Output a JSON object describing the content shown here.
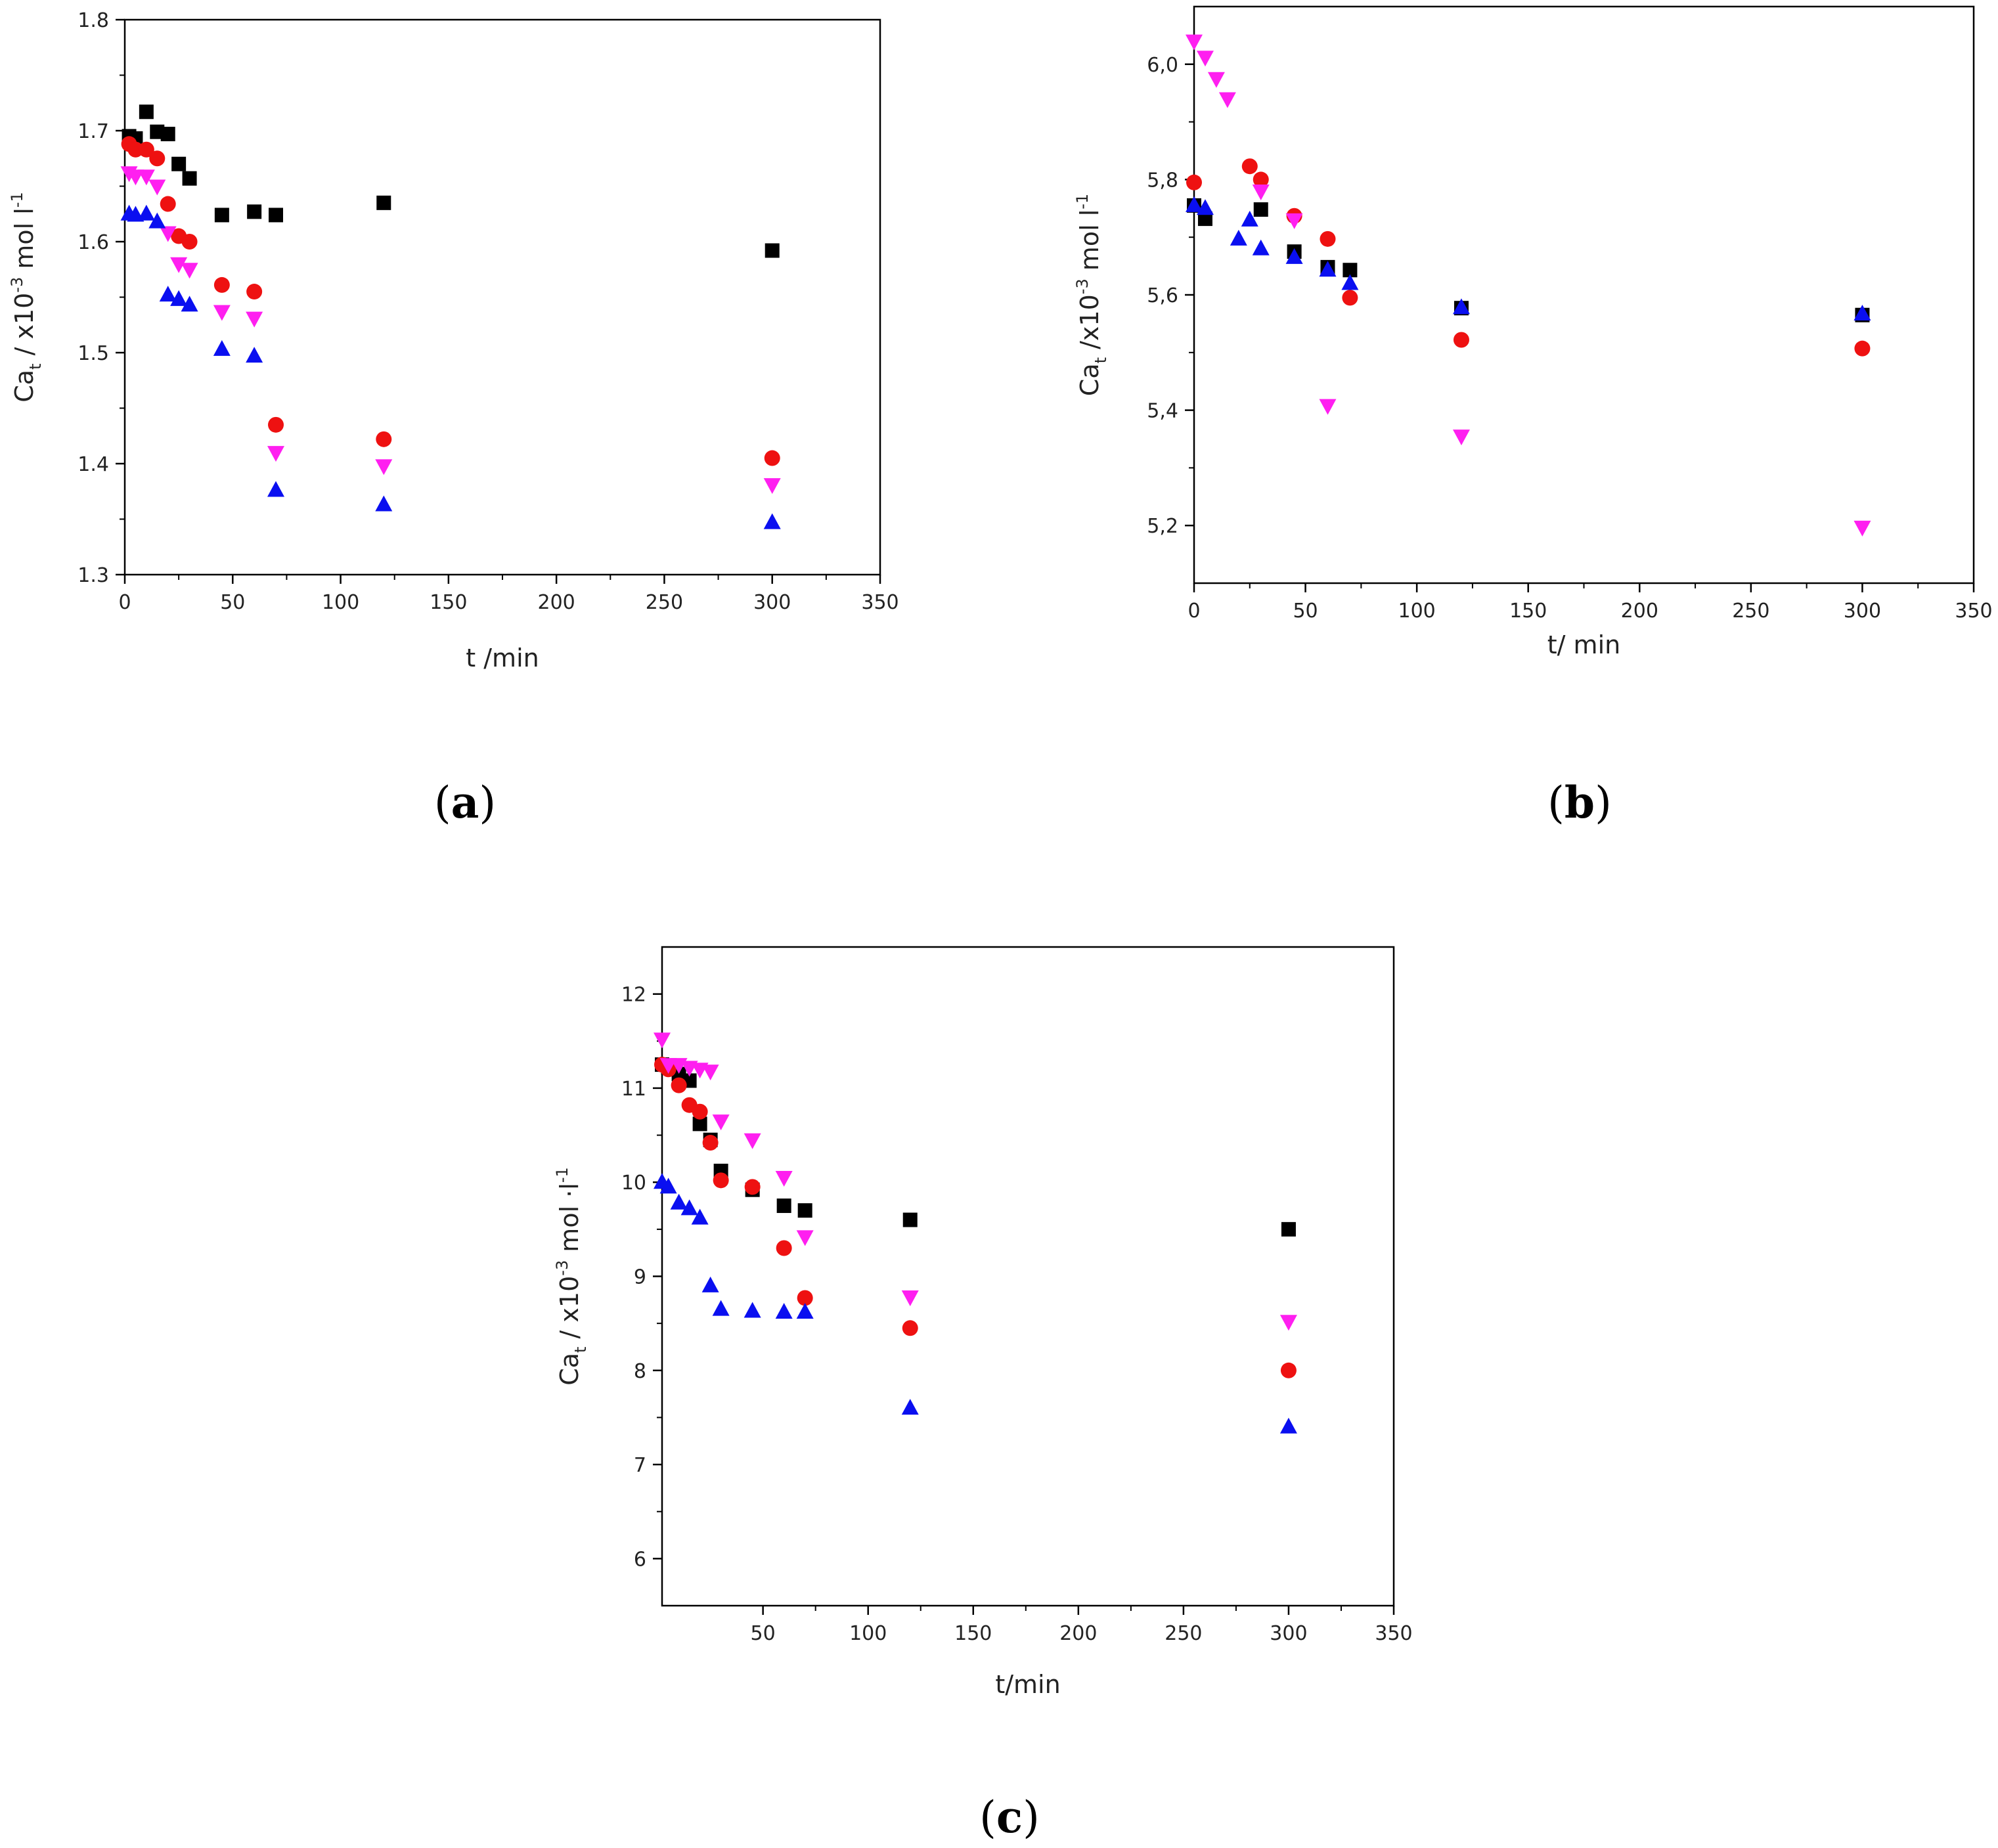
{
  "figure": {
    "marker_legend": [
      {
        "shape": "square",
        "color": "#000000"
      },
      {
        "shape": "circle",
        "color": "#ee1111"
      },
      {
        "shape": "triangle-down",
        "color": "#ff1ff0"
      },
      {
        "shape": "triangle-up",
        "color": "#0a0ff0"
      }
    ]
  },
  "chart_data": [
    {
      "id": "a",
      "type": "scatter",
      "panel_label": {
        "open": "(",
        "letter": "a",
        "close": ")"
      },
      "xlabel": "t /min",
      "ylabel": {
        "base": "Ca",
        "sub": "t",
        "text1": " / x10",
        "sup": "-3",
        "text2": " mol l",
        "sup2": "-1"
      },
      "xlim": [
        0,
        350
      ],
      "ylim": [
        1.3,
        1.8
      ],
      "xticks": [
        0,
        50,
        100,
        150,
        200,
        250,
        300,
        350
      ],
      "yticks": [
        1.3,
        1.4,
        1.5,
        1.6,
        1.7,
        1.8
      ],
      "ytick_labels": [
        "1.3",
        "1.4",
        "1.5",
        "1.6",
        "1.7",
        "1.8"
      ],
      "series": [
        {
          "marker": "square",
          "color": "#000000",
          "x": [
            2,
            5,
            10,
            15,
            20,
            25,
            30,
            45,
            60,
            70,
            120,
            300
          ],
          "y": [
            1.695,
            1.693,
            1.717,
            1.699,
            1.697,
            1.67,
            1.657,
            1.624,
            1.627,
            1.624,
            1.635,
            1.592
          ]
        },
        {
          "marker": "circle",
          "color": "#ee1111",
          "x": [
            2,
            5,
            10,
            15,
            20,
            25,
            30,
            45,
            60,
            70,
            120,
            300
          ],
          "y": [
            1.688,
            1.683,
            1.683,
            1.675,
            1.634,
            1.605,
            1.6,
            1.561,
            1.555,
            1.435,
            1.422,
            1.405
          ]
        },
        {
          "marker": "triangle-down",
          "color": "#ff1ff0",
          "x": [
            2,
            5,
            10,
            15,
            20,
            25,
            30,
            45,
            60,
            70,
            120,
            300
          ],
          "y": [
            1.662,
            1.659,
            1.659,
            1.65,
            1.608,
            1.58,
            1.575,
            1.537,
            1.531,
            1.41,
            1.398,
            1.381
          ]
        },
        {
          "marker": "triangle-up",
          "color": "#0a0ff0",
          "x": [
            2,
            5,
            10,
            15,
            20,
            25,
            30,
            45,
            60,
            70,
            120,
            300
          ],
          "y": [
            1.625,
            1.624,
            1.625,
            1.618,
            1.552,
            1.548,
            1.543,
            1.503,
            1.497,
            1.376,
            1.363,
            1.347
          ]
        }
      ]
    },
    {
      "id": "b",
      "type": "scatter",
      "panel_label": {
        "open": "(",
        "letter": "b",
        "close": ")"
      },
      "xlabel": "t/ min",
      "ylabel": {
        "base": "Ca",
        "sub": "t",
        "text1": " /x10",
        "sup": "-3",
        "text2": " mol l",
        "sup2": "-1"
      },
      "xlim": [
        0,
        350
      ],
      "ylim": [
        5.1,
        6.1
      ],
      "xticks": [
        0,
        50,
        100,
        150,
        200,
        250,
        300,
        350
      ],
      "yticks": [
        5.2,
        5.4,
        5.6,
        5.8,
        6.0
      ],
      "ytick_labels": [
        "5,2",
        "5,4",
        "5,6",
        "5,8",
        "6,0"
      ],
      "series": [
        {
          "marker": "square",
          "color": "#000000",
          "x": [
            0,
            5,
            30,
            45,
            60,
            70,
            120,
            300
          ],
          "y": [
            5.755,
            5.732,
            5.748,
            5.675,
            5.648,
            5.643,
            5.577,
            5.565
          ]
        },
        {
          "marker": "circle",
          "color": "#ee1111",
          "x": [
            0,
            25,
            30,
            45,
            60,
            70,
            120,
            300
          ],
          "y": [
            5.795,
            5.823,
            5.8,
            5.737,
            5.697,
            5.595,
            5.522,
            5.507
          ]
        },
        {
          "marker": "triangle-down",
          "color": "#ff1ff0",
          "x": [
            0,
            5,
            10,
            15,
            30,
            45,
            60,
            120,
            300
          ],
          "y": [
            6.04,
            6.012,
            5.975,
            5.94,
            5.78,
            5.73,
            5.408,
            5.355,
            5.197
          ]
        },
        {
          "marker": "triangle-up",
          "color": "#0a0ff0",
          "x": [
            0,
            5,
            20,
            25,
            30,
            45,
            60,
            70,
            120,
            300
          ],
          "y": [
            5.755,
            5.75,
            5.697,
            5.73,
            5.68,
            5.665,
            5.643,
            5.62,
            5.578,
            5.567
          ]
        }
      ]
    },
    {
      "id": "c",
      "type": "scatter",
      "panel_label": {
        "open": "(",
        "letter": "c",
        "close": ")"
      },
      "xlabel": "t/min",
      "ylabel": {
        "base": "Ca",
        "sub": "t",
        "text1": " / x10",
        "sup": "-3",
        "text2": " mol ·l",
        "sup2": "-1"
      },
      "xlim": [
        2,
        350
      ],
      "ylim": [
        5.5,
        12.5
      ],
      "xticks": [
        50,
        100,
        150,
        200,
        250,
        300,
        350
      ],
      "yticks": [
        6,
        7,
        8,
        9,
        10,
        11,
        12
      ],
      "ytick_labels": [
        "6",
        "7",
        "8",
        "9",
        "10",
        "11",
        "12"
      ],
      "series": [
        {
          "marker": "square",
          "color": "#000000",
          "x": [
            2,
            5,
            10,
            15,
            20,
            25,
            30,
            45,
            60,
            70,
            120,
            300
          ],
          "y": [
            11.25,
            11.22,
            11.15,
            11.08,
            10.62,
            10.45,
            10.12,
            9.92,
            9.75,
            9.7,
            9.6,
            9.5
          ]
        },
        {
          "marker": "circle",
          "color": "#ee1111",
          "x": [
            2,
            5,
            10,
            15,
            20,
            25,
            30,
            45,
            60,
            70,
            120,
            300
          ],
          "y": [
            11.25,
            11.2,
            11.03,
            10.82,
            10.75,
            10.42,
            10.02,
            9.95,
            9.3,
            8.77,
            8.45,
            8.0
          ]
        },
        {
          "marker": "triangle-down",
          "color": "#ff1ff0",
          "x": [
            2,
            5,
            10,
            15,
            20,
            25,
            30,
            45,
            60,
            70,
            120,
            300
          ],
          "y": [
            11.52,
            11.25,
            11.25,
            11.22,
            11.2,
            11.18,
            10.65,
            10.45,
            10.05,
            9.42,
            8.78,
            8.52
          ]
        },
        {
          "marker": "triangle-up",
          "color": "#0a0ff0",
          "x": [
            2,
            5,
            10,
            15,
            20,
            25,
            30,
            45,
            60,
            70,
            120,
            300
          ],
          "y": [
            10.0,
            9.95,
            9.78,
            9.72,
            9.62,
            8.9,
            8.65,
            8.63,
            8.62,
            8.62,
            7.6,
            7.4
          ]
        }
      ]
    }
  ]
}
